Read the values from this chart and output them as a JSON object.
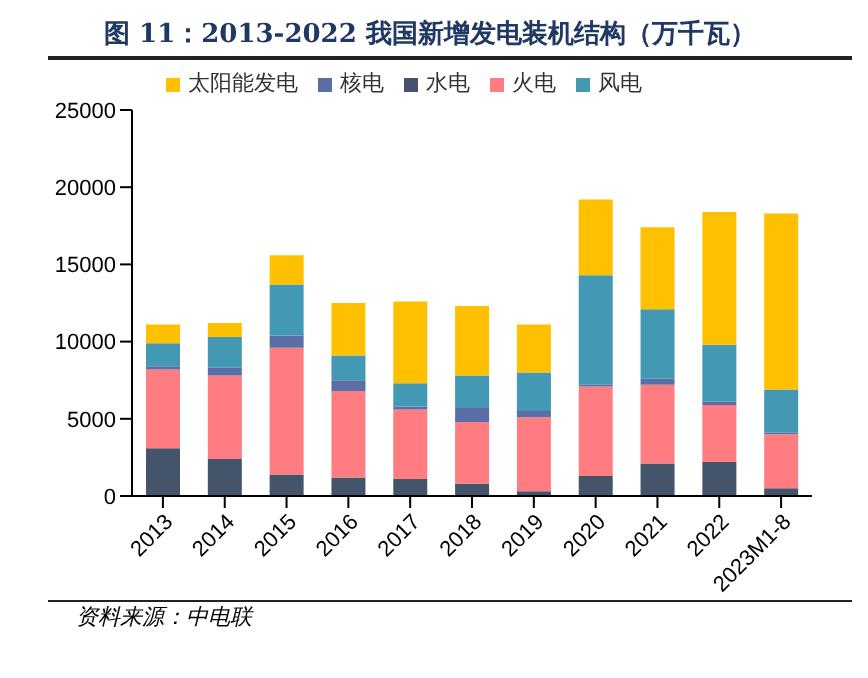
{
  "chart_data": {
    "type": "bar",
    "title": "图 11：2013-2022 我国新增发电装机结构（万千瓦）",
    "categories": [
      "2013",
      "2014",
      "2015",
      "2016",
      "2017",
      "2018",
      "2019",
      "2020",
      "2021",
      "2022",
      "2023M1-8"
    ],
    "stacked": true,
    "series": [
      {
        "name": "水电",
        "color": "#44546a",
        "values": [
          3100,
          2400,
          1400,
          1200,
          1100,
          800,
          300,
          1300,
          2100,
          2200,
          500
        ]
      },
      {
        "name": "火电",
        "color": "#ff7c80",
        "values": [
          5100,
          5400,
          8200,
          5600,
          4500,
          4000,
          4800,
          5800,
          5100,
          3700,
          3500
        ]
      },
      {
        "name": "核电",
        "color": "#5b6fa6",
        "values": [
          200,
          500,
          800,
          700,
          200,
          900,
          400,
          100,
          400,
          200,
          100
        ]
      },
      {
        "name": "风电",
        "color": "#4398b4",
        "values": [
          1500,
          2000,
          3300,
          1600,
          1500,
          2100,
          2500,
          7100,
          4500,
          3700,
          2800
        ]
      },
      {
        "name": "太阳能发电",
        "color": "#ffc000",
        "values": [
          1200,
          900,
          1900,
          3400,
          5300,
          4500,
          3100,
          4900,
          5300,
          8600,
          11400
        ]
      }
    ],
    "ylim": [
      0,
      25000
    ],
    "yticks": [
      0,
      5000,
      10000,
      15000,
      20000,
      25000
    ],
    "grid": false,
    "legend": "top",
    "annotations": [
      "资料来源：中电联"
    ]
  }
}
